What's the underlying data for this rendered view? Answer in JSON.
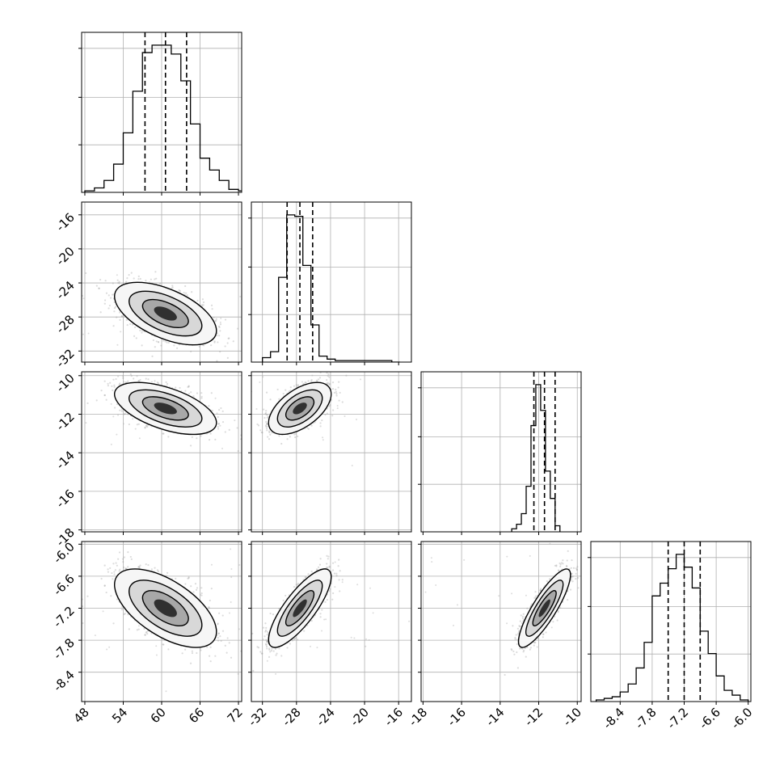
{
  "chart_data": {
    "type": "corner",
    "description": "Corner plot of 4 parameters: 1D marginal histograms on the diagonal with dashed 16/50/84% quantile lines, 2D scatter + density contours below the diagonal",
    "parameters": [
      {
        "range": [
          47.5,
          72.5
        ],
        "ticks": [
          "48",
          "54",
          "60",
          "66",
          "72"
        ],
        "tick_values": [
          48,
          54,
          60,
          66,
          72
        ],
        "hist": {
          "bin_start": 48,
          "bin_width": 1.5,
          "heights": [
            1,
            3,
            8,
            19,
            40,
            68,
            94,
            99,
            99,
            93,
            75,
            46,
            23,
            15,
            8,
            2,
            1
          ]
        },
        "quantiles": [
          57.4,
          60.6,
          63.9
        ]
      },
      {
        "range": [
          -33.3,
          -14.5
        ],
        "ticks": [
          "-32",
          "-28",
          "-24",
          "-20",
          "-16"
        ],
        "tick_values": [
          -32,
          -28,
          -24,
          -20,
          -16
        ],
        "hist": {
          "bin_start": -32.0,
          "bin_width": 0.95,
          "heights": [
            3,
            7,
            57,
            99,
            98,
            65,
            25,
            4,
            2,
            1,
            1,
            1,
            1,
            1,
            1,
            1,
            0
          ]
        },
        "quantiles": [
          -29.1,
          -27.6,
          -26.1
        ],
        "left_ticks": [
          "-16",
          "-20",
          "-24",
          "-28",
          "-32"
        ]
      },
      {
        "range": [
          -18.1,
          -9.8
        ],
        "ticks": [
          "-18",
          "-16",
          "-14",
          "-12",
          "-10"
        ],
        "tick_values": [
          -18,
          -16,
          -14,
          -12,
          -10
        ],
        "hist": {
          "bin_start": -13.4,
          "bin_width": 0.25,
          "heights": [
            2,
            5,
            12,
            30,
            70,
            97,
            80,
            40,
            22,
            4
          ]
        },
        "quantiles": [
          -12.25,
          -11.7,
          -11.15
        ],
        "left_ticks": [
          "-10",
          "-12",
          "-14",
          "-16",
          "-18"
        ]
      },
      {
        "range": [
          -8.95,
          -5.95
        ],
        "ticks": [
          "-8.4",
          "-7.8",
          "-7.2",
          "-6.6",
          "-6.0"
        ],
        "tick_values": [
          -8.4,
          -7.8,
          -7.2,
          -6.6,
          -6.0
        ],
        "hist": {
          "bin_start": -8.85,
          "bin_width": 0.15,
          "heights": [
            1,
            2,
            3,
            6,
            11,
            21,
            37,
            66,
            74,
            83,
            92,
            84,
            71,
            44,
            30,
            16,
            7,
            4,
            1
          ]
        },
        "quantiles": [
          -7.5,
          -7.2,
          -6.9
        ],
        "left_ticks": [
          "-6.0",
          "-6.6",
          "-7.2",
          "-7.8",
          "-8.4"
        ]
      }
    ],
    "correlations": {
      "1,0": -0.55,
      "2,0": -0.55,
      "2,1": 0.55,
      "3,0": -0.6,
      "3,1": 0.8,
      "3,2": 0.85
    },
    "grid": true
  }
}
